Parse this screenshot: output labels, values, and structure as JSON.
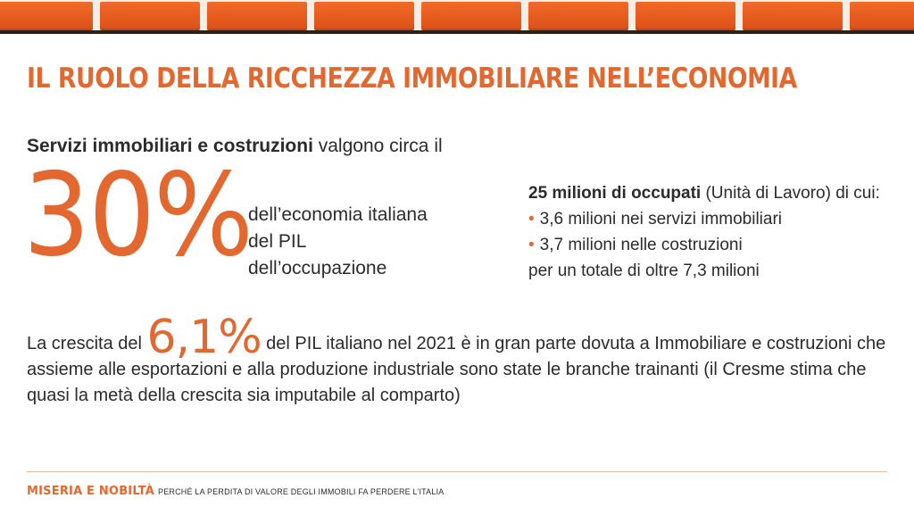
{
  "title": "IL RUOLO DELLA RICCHEZZA IMMOBILIARE NELL’ECONOMIA",
  "lead": {
    "bold": "Servizi immobiliari e costruzioni",
    "rest": " valgono circa il"
  },
  "big_percent": "30%",
  "percent_items": [
    "dell’economia italiana",
    "del PIL",
    "dell’occupazione"
  ],
  "jobs": {
    "headline_bold": "25 milioni di occupati",
    "headline_rest": " (Unità di Lavoro) di cui:",
    "bullets": [
      "3,6 milioni nei servizi immobiliari",
      "3,7 milioni nelle costruzioni"
    ],
    "total": "per un totale di oltre 7,3 milioni"
  },
  "growth": {
    "prefix": "La crescita del ",
    "percent": "6,1%",
    "text": " del PIL italiano nel 2021 è in gran parte dovuta a Immobiliare e costruzioni che assieme alle esportazioni e alla produzione industriale sono state le branche trainanti (il Cresme stima che quasi la metà della crescita sia imputabile al comparto)"
  },
  "footer": {
    "brand": "MISERIA E NOBILTÀ",
    "subtitle": "PERCHÉ LA PERDITA DI VALORE DEGLI IMMOBILI FA PERDERE L’ITALIA"
  },
  "colors": {
    "accent": "#e3682f",
    "text": "#2b2b2b",
    "brick": "#e65a1c"
  }
}
